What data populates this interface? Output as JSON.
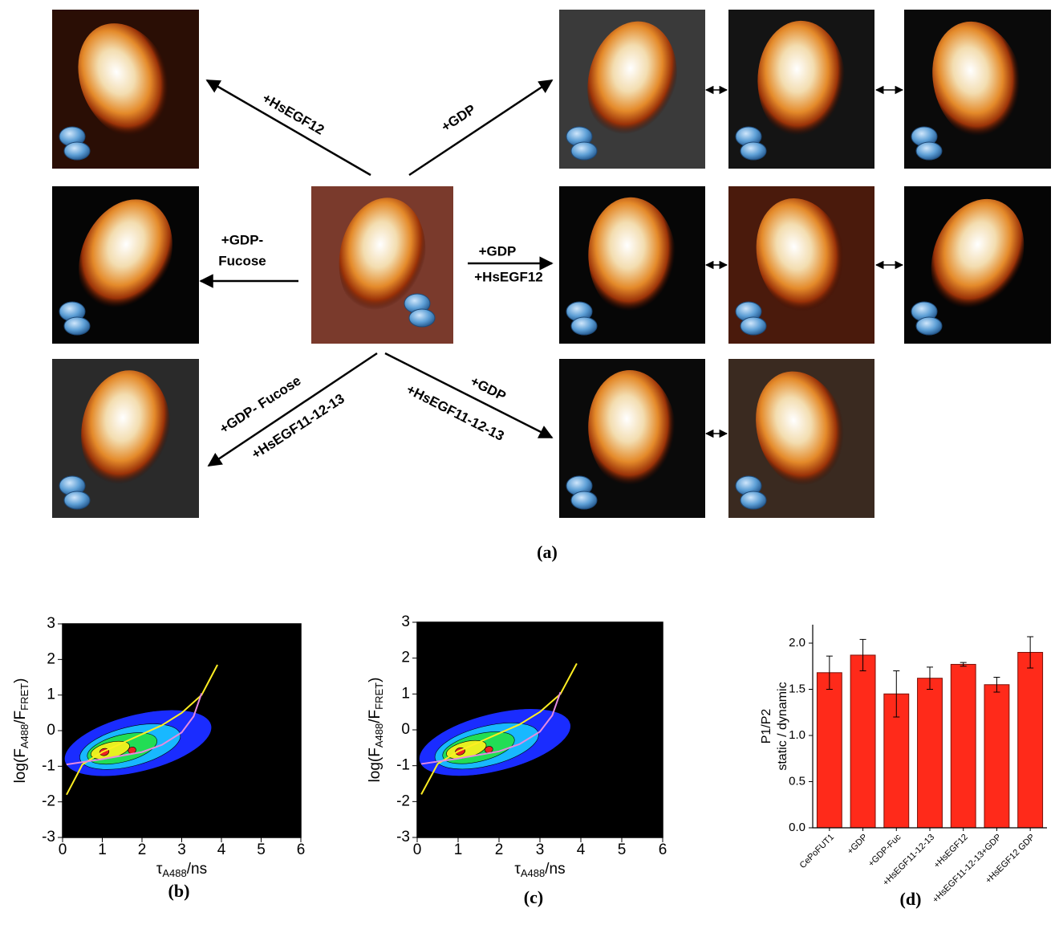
{
  "panel_a": {
    "label": "(a)",
    "arrows": [
      {
        "lines": [
          "+HsEGF12"
        ]
      },
      {
        "lines": [
          "+GDP"
        ]
      },
      {
        "lines": [
          "+GDP-",
          "Fucose"
        ]
      },
      {
        "lines": [
          "+GDP",
          "+HsEGF12"
        ]
      },
      {
        "lines": [
          "+GDP- Fucose",
          "+HsEGF11-12-13"
        ]
      },
      {
        "lines": [
          "+GDP",
          "+HsEGF11-12-13"
        ]
      }
    ]
  },
  "chart_data": [
    {
      "type": "line",
      "label": "(b)",
      "xlabel": [
        "τ",
        "A488",
        "/ns"
      ],
      "ylabel": [
        "log(F",
        "A488",
        "/F",
        "FRET",
        ")"
      ],
      "xlim": [
        0,
        6
      ],
      "xticks": [
        0,
        1,
        2,
        3,
        4,
        5,
        6
      ],
      "ylim": [
        -3,
        3
      ],
      "yticks": [
        -3,
        -2,
        -1,
        0,
        1,
        2,
        3
      ],
      "series": [
        {
          "color": "#ffee22",
          "x": [
            0.1,
            0.5,
            1,
            1.5,
            2,
            2.5,
            3,
            3.5,
            3.9
          ],
          "values": [
            -1.8,
            -0.95,
            -0.6,
            -0.35,
            -0.1,
            0.15,
            0.5,
            1.0,
            1.85
          ]
        },
        {
          "color": "#e58be0",
          "x": [
            0.1,
            1,
            2,
            2.5,
            3,
            3.3,
            3.5
          ],
          "values": [
            -0.95,
            -0.8,
            -0.6,
            -0.4,
            -0.05,
            0.4,
            1.05
          ]
        }
      ]
    },
    {
      "type": "line",
      "label": "(c)",
      "xlabel": [
        "τ",
        "A488",
        "/ns"
      ],
      "ylabel": [
        "log(F",
        "A488",
        "/F",
        "FRET",
        ")"
      ],
      "xlim": [
        0,
        6
      ],
      "xticks": [
        0,
        1,
        2,
        3,
        4,
        5,
        6
      ],
      "ylim": [
        -3,
        3
      ],
      "yticks": [
        -3,
        -2,
        -1,
        0,
        1,
        2,
        3
      ],
      "series": [
        {
          "color": "#ffee22",
          "x": [
            0.1,
            0.5,
            1,
            1.5,
            2,
            2.5,
            3,
            3.5,
            3.9
          ],
          "values": [
            -1.8,
            -0.95,
            -0.6,
            -0.35,
            -0.1,
            0.15,
            0.5,
            1.0,
            1.85
          ]
        },
        {
          "color": "#e58be0",
          "x": [
            0.1,
            1,
            2,
            2.5,
            3,
            3.3,
            3.5
          ],
          "values": [
            -0.95,
            -0.8,
            -0.6,
            -0.4,
            -0.05,
            0.4,
            1.05
          ]
        }
      ]
    },
    {
      "type": "bar",
      "label": "(d)",
      "ylabel": [
        "P1/P2",
        "static / dynamic"
      ],
      "color": "#ff2a1a",
      "categories": [
        "CePoFUT1",
        "+GDP",
        "+GDP-Fuc",
        "+HsEGF11-12-13",
        "+HsEGF12",
        "+HsEGF11-12-13+GDP",
        "+HsEGF12 GDP"
      ],
      "values": [
        1.68,
        1.87,
        1.45,
        1.62,
        1.77,
        1.55,
        1.9
      ],
      "errors": [
        0.18,
        0.17,
        0.25,
        0.12,
        0.02,
        0.08,
        0.17
      ],
      "ylim": [
        0,
        2.2
      ],
      "yticks": [
        {
          "value": 0,
          "label": "0.0"
        },
        {
          "value": 0.5,
          "label": "0.5"
        },
        {
          "value": 1,
          "label": "1.0"
        },
        {
          "value": 1.5,
          "label": "1.5"
        },
        {
          "value": 2,
          "label": "2.0"
        }
      ]
    }
  ]
}
